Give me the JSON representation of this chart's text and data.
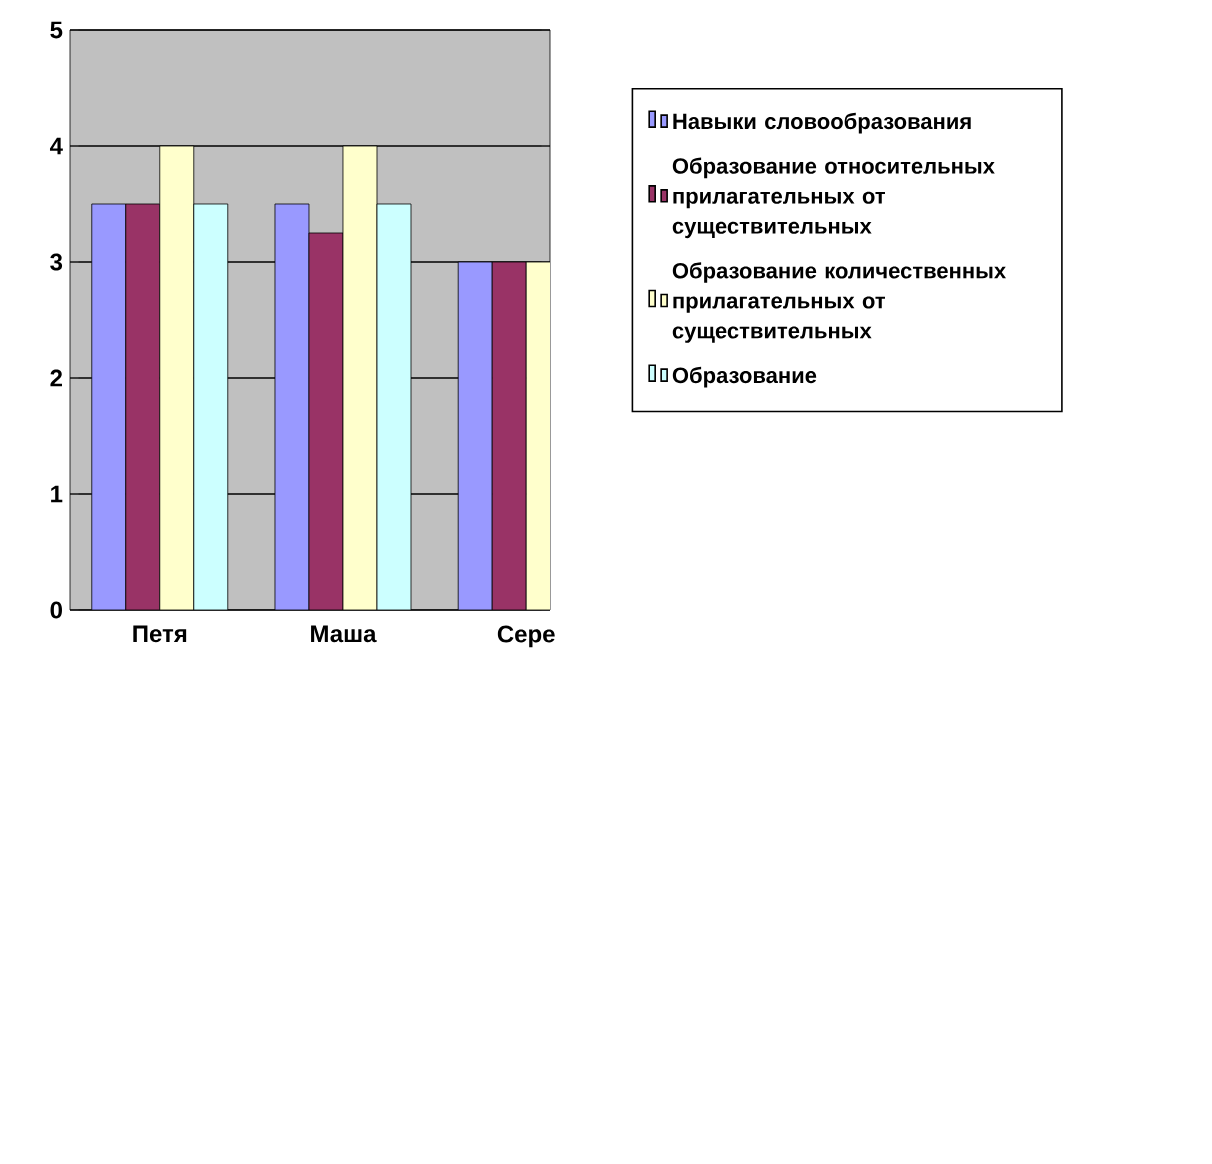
{
  "chart_data": {
    "type": "bar",
    "categories": [
      "Петя",
      "Маша",
      "Сере"
    ],
    "series": [
      {
        "name": "Навыки словообразования",
        "color": "#9999ff",
        "values": [
          3.5,
          3.5,
          3
        ]
      },
      {
        "name": "Образование относительных прилагательных от существительных",
        "color": "#993366",
        "values": [
          3.5,
          3.25,
          3
        ]
      },
      {
        "name": "Образование количественных прилагательных от существительных",
        "color": "#ffffcc",
        "values": [
          4,
          4,
          3
        ]
      },
      {
        "name": "Образование",
        "color": "#ccffff",
        "values": [
          3.5,
          3.5,
          null
        ]
      }
    ],
    "ylim": [
      0,
      5
    ],
    "yticks": [
      0,
      1,
      2,
      3,
      4,
      5
    ],
    "grid": "y",
    "legend": "right"
  }
}
